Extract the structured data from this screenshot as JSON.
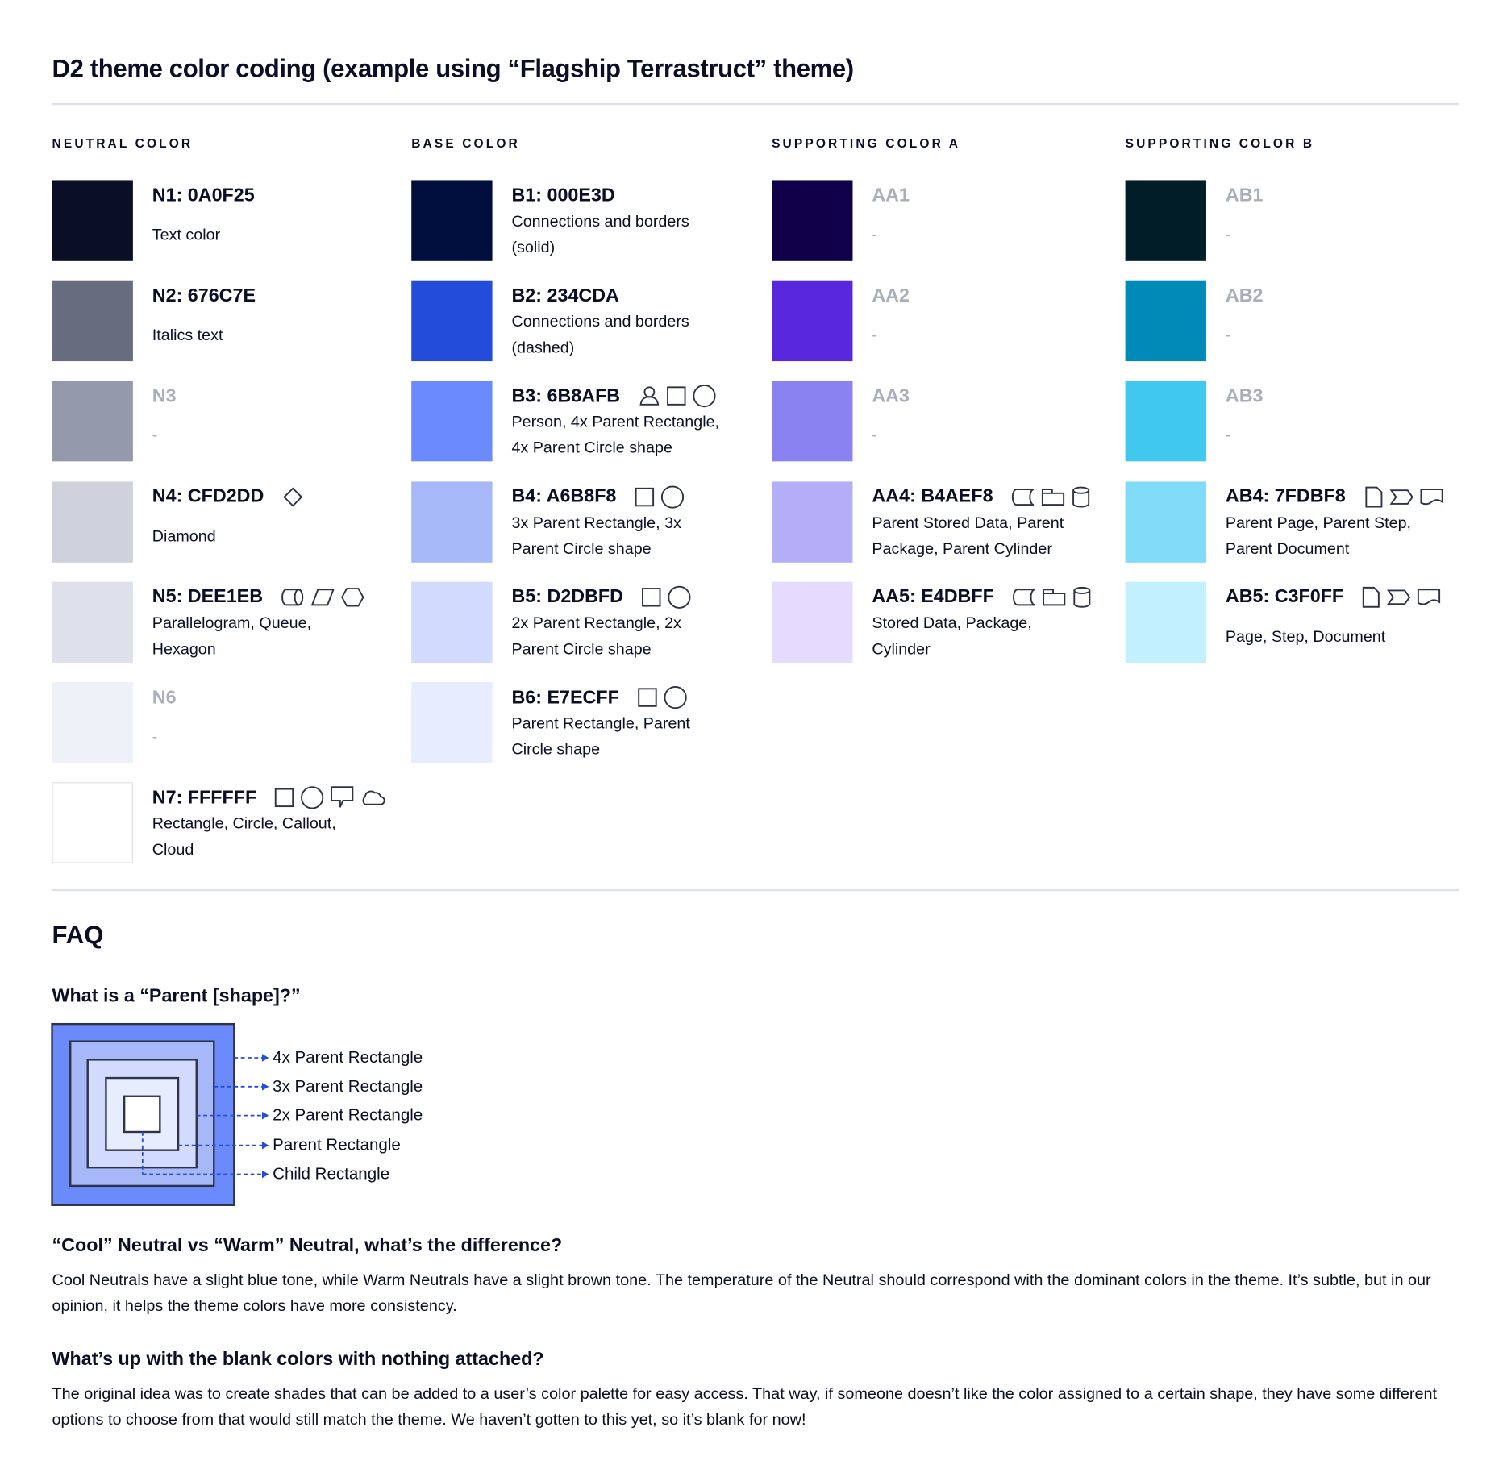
{
  "title": "D2 theme color coding (example using “Flagship Terrastruct” theme)",
  "columns": [
    {
      "heading": "NEUTRAL COLOR",
      "rows": [
        {
          "code": "N1: 0A0F25",
          "color": "#0A0F25",
          "description": "Text color",
          "icons": []
        },
        {
          "code": "N2: 676C7E",
          "color": "#676C7E",
          "description": "Italics text",
          "icons": []
        },
        {
          "code": "N3",
          "color": "#9499AB",
          "description": "-",
          "icons": [],
          "blank": true
        },
        {
          "code": "N4: CFD2DD",
          "color": "#CFD2DD",
          "description": "Diamond",
          "icons": [
            "diamond-icon"
          ]
        },
        {
          "code": "N5: DEE1EB",
          "color": "#DEE1EB",
          "description": "Parallelogram, Queue,\nHexagon",
          "icons": [
            "queue-icon",
            "parallelogram-icon",
            "hexagon-icon"
          ]
        },
        {
          "code": "N6",
          "color": "#EEF1F8",
          "description": "-",
          "icons": [],
          "blank": true
        },
        {
          "code": "N7: FFFFFF",
          "color": "#FFFFFF",
          "description": "Rectangle, Circle, Callout,\nCloud",
          "icons": [
            "rectangle-icon",
            "circle-icon",
            "callout-icon",
            "cloud-icon"
          ]
        }
      ]
    },
    {
      "heading": "BASE COLOR",
      "rows": [
        {
          "code": "B1: 000E3D",
          "color": "#000E3D",
          "description": "Connections and borders\n(solid)",
          "icons": []
        },
        {
          "code": "B2: 234CDA",
          "color": "#234CDA",
          "description": "Connections and borders\n(dashed)",
          "icons": []
        },
        {
          "code": "B3: 6B8AFB",
          "color": "#6B8AFB",
          "description": "Person, 4x Parent Rectangle,\n4x Parent Circle shape",
          "icons": [
            "person-icon",
            "rectangle-icon",
            "circle-icon"
          ]
        },
        {
          "code": "B4: A6B8F8",
          "color": "#A6B8F8",
          "description": "3x Parent Rectangle, 3x\nParent Circle shape",
          "icons": [
            "rectangle-icon",
            "circle-icon"
          ]
        },
        {
          "code": "B5: D2DBFD",
          "color": "#D2DBFD",
          "description": "2x Parent Rectangle, 2x\nParent Circle shape",
          "icons": [
            "rectangle-icon",
            "circle-icon"
          ]
        },
        {
          "code": "B6: E7ECFF",
          "color": "#E7ECFF",
          "description": "Parent Rectangle, Parent\nCircle shape",
          "icons": [
            "rectangle-icon",
            "circle-icon"
          ]
        }
      ]
    },
    {
      "heading": "SUPPORTING COLOR A",
      "rows": [
        {
          "code": "AA1",
          "color": "#10004A",
          "description": "-",
          "icons": [],
          "blank": true
        },
        {
          "code": "AA2",
          "color": "#5A28DC",
          "description": "-",
          "icons": [],
          "blank": true
        },
        {
          "code": "AA3",
          "color": "#8B82F2",
          "description": "-",
          "icons": [],
          "blank": true
        },
        {
          "code": "AA4: B4AEF8",
          "color": "#B4AEF8",
          "description": "Parent Stored Data, Parent\nPackage,  Parent Cylinder",
          "icons": [
            "stored-data-icon",
            "package-icon",
            "cylinder-icon"
          ]
        },
        {
          "code": "AA5: E4DBFF",
          "color": "#E4DBFF",
          "description": "Stored Data, Package,\nCylinder",
          "icons": [
            "stored-data-icon",
            "package-icon",
            "cylinder-icon"
          ]
        }
      ]
    },
    {
      "heading": "SUPPORTING COLOR B",
      "rows": [
        {
          "code": "AB1",
          "color": "#011E28",
          "description": "-",
          "icons": [],
          "blank": true
        },
        {
          "code": "AB2",
          "color": "#008AB8",
          "description": "-",
          "icons": [],
          "blank": true
        },
        {
          "code": "AB3",
          "color": "#40C8EE",
          "description": "-",
          "icons": [],
          "blank": true
        },
        {
          "code": "AB4: 7FDBF8",
          "color": "#7FDBF8",
          "description": "Parent Page, Parent Step,\nParent Document",
          "icons": [
            "page-icon",
            "step-icon",
            "document-icon"
          ]
        },
        {
          "code": "AB5: C3F0FF",
          "color": "#C3F0FF",
          "description": "Page, Step, Document",
          "icons": [
            "page-icon",
            "step-icon",
            "document-icon"
          ]
        }
      ]
    }
  ],
  "faq": {
    "title": "FAQ",
    "q1": "What is a “Parent [shape]?”",
    "diagram_labels": [
      "4x Parent Rectangle",
      "3x Parent Rectangle",
      "2x Parent Rectangle",
      "Parent Rectangle",
      "Child Rectangle"
    ],
    "diagram_colors": [
      "#6B8AFB",
      "#A6B8F8",
      "#D2DBFD",
      "#E7ECFF",
      "#FFFFFF"
    ],
    "arrow_color": "#234CDA",
    "q2": "“Cool” Neutral vs “Warm” Neutral, what’s the difference?",
    "a2": "Cool Neutrals have a slight blue tone, while Warm Neutrals have a slight brown tone. The temperature of the Neutral should correspond with the dominant colors in the theme. It’s subtle, but in our opinion, it helps the theme colors have more consistency.",
    "q3": "What’s up with the blank colors with nothing attached?",
    "a3": "The original idea was to create shades that can be added to a user’s color palette for easy access. That way, if someone doesn’t like the color assigned to a certain shape, they have some different options to choose from that would still match the theme. We haven’t gotten to this yet, so it’s blank for now!"
  }
}
